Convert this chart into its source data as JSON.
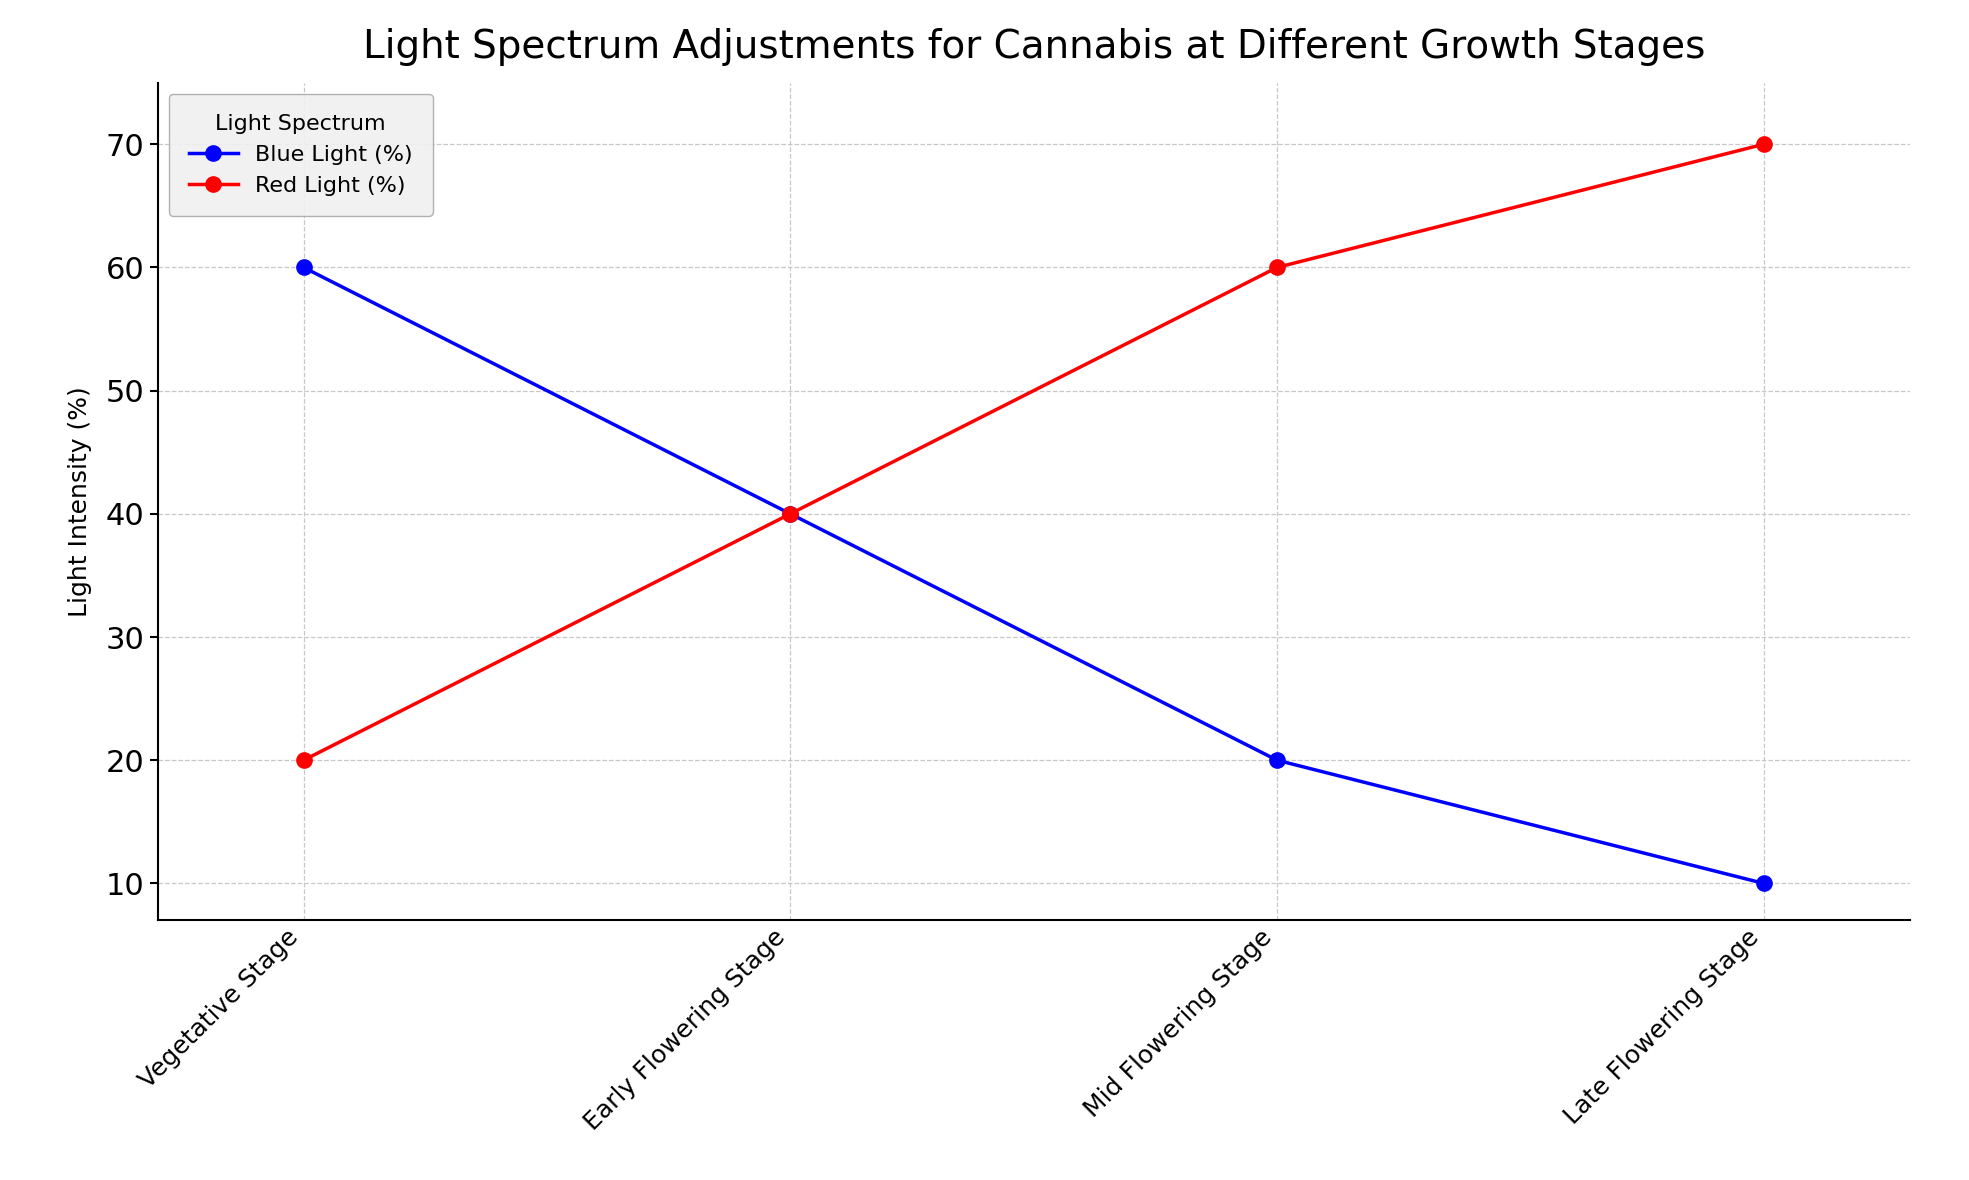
{
  "title": "Light Spectrum Adjustments for Cannabis at Different Growth Stages",
  "ylabel": "Light Intensity (%)",
  "categories": [
    "Vegetative Stage",
    "Early Flowering Stage",
    "Mid Flowering Stage",
    "Late Flowering Stage"
  ],
  "blue_light": [
    60,
    40,
    20,
    10
  ],
  "red_light": [
    20,
    40,
    60,
    70
  ],
  "blue_color": "#0000ff",
  "red_color": "#ff0000",
  "background_color": "#ffffff",
  "grid_color": "#c8c8c8",
  "ylim": [
    7,
    75
  ],
  "yticks": [
    10,
    20,
    30,
    40,
    50,
    60,
    70
  ],
  "legend_title": "Light Spectrum",
  "legend_blue": "Blue Light (%)",
  "legend_red": "Red Light (%)",
  "title_fontsize": 28,
  "label_fontsize": 18,
  "tick_fontsize": 22,
  "xtick_fontsize": 18,
  "legend_fontsize": 16,
  "marker_size": 11,
  "line_width": 2.5
}
